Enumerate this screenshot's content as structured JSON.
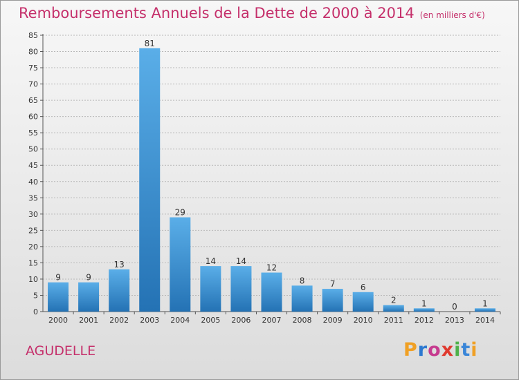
{
  "header": {
    "title": "Remboursements Annuels de la Dette de 2000 à 2014",
    "unit": "(en milliers d'€)"
  },
  "commune": "AGUDELLE",
  "logo": {
    "text": "Proxiti",
    "letters": [
      "P",
      "r",
      "o",
      "x",
      "i",
      "t",
      "i"
    ],
    "colors": [
      "#f0a024",
      "#2b78d0",
      "#c63b8f",
      "#e03a2f",
      "#4fb14a",
      "#3a86d8",
      "#f0a024"
    ]
  },
  "colors": {
    "accent": "#c5306b",
    "bar_light": "#5aaee8",
    "bar_dark": "#2472b4"
  },
  "chart_data": {
    "type": "bar",
    "title": "Remboursements Annuels de la Dette de 2000 à 2014",
    "categories": [
      "2000",
      "2001",
      "2002",
      "2003",
      "2004",
      "2005",
      "2006",
      "2007",
      "2008",
      "2009",
      "2010",
      "2011",
      "2012",
      "2013",
      "2014"
    ],
    "values": [
      9,
      9,
      13,
      81,
      29,
      14,
      14,
      12,
      8,
      7,
      6,
      2,
      1,
      0,
      1
    ],
    "yticks": [
      0,
      5,
      10,
      15,
      20,
      25,
      30,
      35,
      40,
      45,
      50,
      55,
      60,
      65,
      70,
      75,
      80,
      85
    ],
    "ylim": [
      0,
      85
    ],
    "grid": true,
    "legend": "none"
  }
}
